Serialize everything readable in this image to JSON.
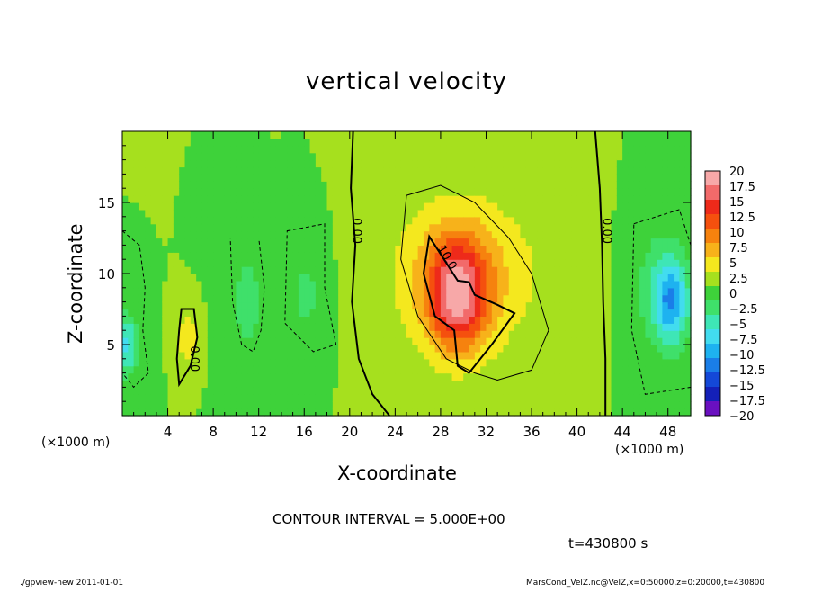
{
  "chart_data": {
    "type": "heatmap",
    "title": "vertical velocity",
    "xlabel": "X-coordinate",
    "ylabel": "Z-coordinate",
    "x_unit_label": "(×1000 m)",
    "xlim": [
      0,
      50
    ],
    "ylim": [
      0,
      20
    ],
    "x_ticks": [
      "4",
      "8",
      "12",
      "16",
      "20",
      "24",
      "28",
      "32",
      "36",
      "40",
      "44",
      "48"
    ],
    "x_tick_values": [
      4,
      8,
      12,
      16,
      20,
      24,
      28,
      32,
      36,
      40,
      44,
      48
    ],
    "y_ticks": [
      "5",
      "10",
      "15"
    ],
    "y_tick_values": [
      5,
      10,
      15
    ],
    "colorbar": {
      "labels": [
        "20",
        "17.5",
        "15",
        "12.5",
        "10",
        "7.5",
        "5",
        "2.5",
        "0",
        "−2.5",
        "−5",
        "−7.5",
        "−10",
        "−12.5",
        "−15",
        "−17.5",
        "−20"
      ],
      "values": [
        20,
        17.5,
        15,
        12.5,
        10,
        7.5,
        5,
        2.5,
        0,
        -2.5,
        -5,
        -7.5,
        -10,
        -12.5,
        -15,
        -17.5,
        -20
      ],
      "colors": [
        "#f7a8a8",
        "#f26a6a",
        "#ee2a1a",
        "#f5500e",
        "#f6820e",
        "#f7b21a",
        "#f4e81e",
        "#a6e01e",
        "#3ed23a",
        "#3fe06a",
        "#3ee6b6",
        "#42dcef",
        "#1eb2f0",
        "#1a7ee8",
        "#1448d8",
        "#1420b8",
        "#6a10c0"
      ]
    },
    "contour_labels": [
      "0.00",
      "0.00",
      "0.00",
      "10.0"
    ],
    "contour_interval_text": "CONTOUR INTERVAL = 5.000E+00",
    "features": [
      {
        "kind": "updraft",
        "x": 29,
        "z": 9,
        "peak": 15
      },
      {
        "kind": "downdraft",
        "x": 48,
        "z": 8,
        "peak": -10
      },
      {
        "kind": "downdraft",
        "x": 0.5,
        "z": 5,
        "peak": -8
      },
      {
        "kind": "downdraft",
        "x": 11,
        "z": 8,
        "peak": -5
      },
      {
        "kind": "downdraft",
        "x": 16,
        "z": 10,
        "peak": -4
      }
    ]
  },
  "time_label": "t=430800 s",
  "footer": {
    "left": "./gpview-new   2011-01-01",
    "right": "MarsCond_VelZ.nc@VelZ,x=0:50000,z=0:20000,t=430800"
  }
}
